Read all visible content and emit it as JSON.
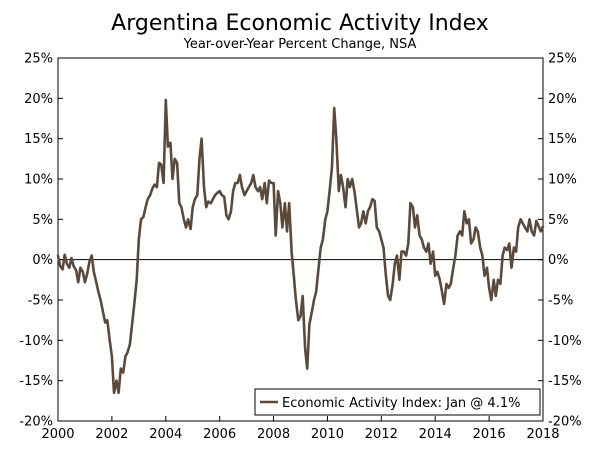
{
  "chart_data": {
    "type": "line",
    "title": "Argentina Economic Activity Index",
    "subtitle": "Year-over-Year Percent Change, NSA",
    "xlabel": "",
    "ylabel": "",
    "xlim": [
      2000,
      2018
    ],
    "ylim": [
      -20,
      25
    ],
    "x_ticks": [
      2000,
      2002,
      2004,
      2006,
      2008,
      2010,
      2012,
      2014,
      2016,
      2018
    ],
    "x_tick_labels": [
      "2000",
      "2002",
      "2004",
      "2006",
      "2008",
      "2010",
      "2012",
      "2014",
      "2016",
      "2018"
    ],
    "y_ticks": [
      25,
      20,
      15,
      10,
      5,
      0,
      -5,
      -10,
      -15,
      -20
    ],
    "y_tick_labels": [
      "25%",
      "20%",
      "15%",
      "10%",
      "5%",
      "0%",
      "-5%",
      "-10%",
      "-15%",
      "-20%"
    ],
    "zero_line": true,
    "legend": {
      "label": "Economic Activity Index: Jan @ 4.1%",
      "position": "bottom-right"
    },
    "series": [
      {
        "name": "Economic Activity Index",
        "color": "#5b4a3c",
        "points": [
          [
            2000.0,
            0.5
          ],
          [
            2000.08,
            -0.8
          ],
          [
            2000.17,
            -1.2
          ],
          [
            2000.25,
            0.6
          ],
          [
            2000.33,
            -0.5
          ],
          [
            2000.42,
            -1.0
          ],
          [
            2000.5,
            0.2
          ],
          [
            2000.58,
            -0.8
          ],
          [
            2000.67,
            -1.3
          ],
          [
            2000.75,
            -2.8
          ],
          [
            2000.83,
            -1.0
          ],
          [
            2000.92,
            -1.5
          ],
          [
            2001.0,
            -2.8
          ],
          [
            2001.08,
            -1.8
          ],
          [
            2001.17,
            -0.2
          ],
          [
            2001.25,
            0.5
          ],
          [
            2001.33,
            -1.5
          ],
          [
            2001.42,
            -2.8
          ],
          [
            2001.5,
            -4.0
          ],
          [
            2001.58,
            -5.0
          ],
          [
            2001.67,
            -6.5
          ],
          [
            2001.75,
            -7.8
          ],
          [
            2001.83,
            -7.5
          ],
          [
            2001.92,
            -10.0
          ],
          [
            2002.0,
            -12.0
          ],
          [
            2002.08,
            -16.5
          ],
          [
            2002.17,
            -15.0
          ],
          [
            2002.25,
            -16.5
          ],
          [
            2002.33,
            -13.5
          ],
          [
            2002.42,
            -14.0
          ],
          [
            2002.5,
            -12.0
          ],
          [
            2002.58,
            -11.5
          ],
          [
            2002.67,
            -10.5
          ],
          [
            2002.75,
            -8.0
          ],
          [
            2002.83,
            -5.5
          ],
          [
            2002.92,
            -2.5
          ],
          [
            2003.0,
            2.5
          ],
          [
            2003.08,
            5.0
          ],
          [
            2003.17,
            5.3
          ],
          [
            2003.25,
            6.5
          ],
          [
            2003.33,
            7.5
          ],
          [
            2003.42,
            8.0
          ],
          [
            2003.5,
            8.8
          ],
          [
            2003.58,
            9.3
          ],
          [
            2003.67,
            9.0
          ],
          [
            2003.75,
            12.0
          ],
          [
            2003.83,
            11.8
          ],
          [
            2003.92,
            9.5
          ],
          [
            2004.0,
            19.8
          ],
          [
            2004.08,
            14.0
          ],
          [
            2004.17,
            14.5
          ],
          [
            2004.25,
            10.0
          ],
          [
            2004.33,
            12.5
          ],
          [
            2004.42,
            12.0
          ],
          [
            2004.5,
            7.0
          ],
          [
            2004.58,
            6.5
          ],
          [
            2004.67,
            5.0
          ],
          [
            2004.75,
            4.0
          ],
          [
            2004.83,
            5.0
          ],
          [
            2004.92,
            3.8
          ],
          [
            2005.0,
            6.5
          ],
          [
            2005.08,
            7.5
          ],
          [
            2005.17,
            8.0
          ],
          [
            2005.25,
            12.5
          ],
          [
            2005.33,
            15.0
          ],
          [
            2005.42,
            9.0
          ],
          [
            2005.5,
            6.5
          ],
          [
            2005.58,
            7.2
          ],
          [
            2005.67,
            7.0
          ],
          [
            2005.75,
            7.5
          ],
          [
            2005.83,
            8.0
          ],
          [
            2005.92,
            8.3
          ],
          [
            2006.0,
            8.5
          ],
          [
            2006.08,
            8.0
          ],
          [
            2006.17,
            7.8
          ],
          [
            2006.25,
            5.5
          ],
          [
            2006.33,
            5.0
          ],
          [
            2006.42,
            6.0
          ],
          [
            2006.5,
            8.5
          ],
          [
            2006.58,
            9.5
          ],
          [
            2006.67,
            9.5
          ],
          [
            2006.75,
            10.5
          ],
          [
            2006.83,
            9.0
          ],
          [
            2006.92,
            8.0
          ],
          [
            2007.0,
            8.5
          ],
          [
            2007.08,
            9.0
          ],
          [
            2007.17,
            9.5
          ],
          [
            2007.25,
            10.5
          ],
          [
            2007.33,
            9.0
          ],
          [
            2007.42,
            8.5
          ],
          [
            2007.5,
            9.0
          ],
          [
            2007.58,
            7.5
          ],
          [
            2007.67,
            9.5
          ],
          [
            2007.75,
            7.0
          ],
          [
            2007.83,
            9.8
          ],
          [
            2007.92,
            9.5
          ],
          [
            2008.0,
            9.5
          ],
          [
            2008.08,
            3.0
          ],
          [
            2008.17,
            8.5
          ],
          [
            2008.25,
            7.0
          ],
          [
            2008.33,
            4.0
          ],
          [
            2008.42,
            7.0
          ],
          [
            2008.5,
            3.5
          ],
          [
            2008.58,
            7.0
          ],
          [
            2008.67,
            1.0
          ],
          [
            2008.75,
            -2.0
          ],
          [
            2008.83,
            -5.0
          ],
          [
            2008.92,
            -7.5
          ],
          [
            2009.0,
            -7.0
          ],
          [
            2009.08,
            -4.5
          ],
          [
            2009.17,
            -11.0
          ],
          [
            2009.25,
            -13.5
          ],
          [
            2009.33,
            -8.0
          ],
          [
            2009.42,
            -6.5
          ],
          [
            2009.5,
            -5.0
          ],
          [
            2009.58,
            -4.0
          ],
          [
            2009.67,
            -1.0
          ],
          [
            2009.75,
            1.5
          ],
          [
            2009.83,
            2.5
          ],
          [
            2009.92,
            5.0
          ],
          [
            2010.0,
            6.0
          ],
          [
            2010.08,
            8.5
          ],
          [
            2010.17,
            11.5
          ],
          [
            2010.25,
            18.8
          ],
          [
            2010.33,
            15.0
          ],
          [
            2010.42,
            8.5
          ],
          [
            2010.5,
            10.5
          ],
          [
            2010.58,
            9.0
          ],
          [
            2010.67,
            6.5
          ],
          [
            2010.75,
            10.0
          ],
          [
            2010.83,
            9.0
          ],
          [
            2010.92,
            10.0
          ],
          [
            2011.0,
            8.5
          ],
          [
            2011.08,
            6.5
          ],
          [
            2011.17,
            4.0
          ],
          [
            2011.25,
            4.5
          ],
          [
            2011.33,
            6.0
          ],
          [
            2011.42,
            4.5
          ],
          [
            2011.5,
            6.0
          ],
          [
            2011.58,
            6.5
          ],
          [
            2011.67,
            7.5
          ],
          [
            2011.75,
            7.3
          ],
          [
            2011.83,
            4.0
          ],
          [
            2011.92,
            3.5
          ],
          [
            2012.0,
            2.5
          ],
          [
            2012.08,
            1.5
          ],
          [
            2012.17,
            -2.0
          ],
          [
            2012.25,
            -4.5
          ],
          [
            2012.33,
            -5.0
          ],
          [
            2012.42,
            -3.0
          ],
          [
            2012.5,
            -0.5
          ],
          [
            2012.58,
            0.5
          ],
          [
            2012.67,
            -2.5
          ],
          [
            2012.75,
            1.0
          ],
          [
            2012.83,
            1.0
          ],
          [
            2012.92,
            0.5
          ],
          [
            2013.0,
            2.0
          ],
          [
            2013.08,
            7.0
          ],
          [
            2013.17,
            6.5
          ],
          [
            2013.25,
            4.0
          ],
          [
            2013.33,
            5.5
          ],
          [
            2013.42,
            3.0
          ],
          [
            2013.5,
            2.5
          ],
          [
            2013.58,
            1.5
          ],
          [
            2013.67,
            1.0
          ],
          [
            2013.75,
            2.0
          ],
          [
            2013.83,
            -0.5
          ],
          [
            2013.92,
            1.0
          ],
          [
            2014.0,
            -2.0
          ],
          [
            2014.08,
            -1.5
          ],
          [
            2014.17,
            -2.5
          ],
          [
            2014.25,
            -4.0
          ],
          [
            2014.33,
            -5.5
          ],
          [
            2014.42,
            -3.0
          ],
          [
            2014.5,
            -3.5
          ],
          [
            2014.58,
            -3.0
          ],
          [
            2014.67,
            -1.0
          ],
          [
            2014.75,
            0.5
          ],
          [
            2014.83,
            3.0
          ],
          [
            2014.92,
            3.5
          ],
          [
            2015.0,
            3.0
          ],
          [
            2015.08,
            6.0
          ],
          [
            2015.17,
            4.5
          ],
          [
            2015.25,
            5.0
          ],
          [
            2015.33,
            2.0
          ],
          [
            2015.42,
            2.5
          ],
          [
            2015.5,
            4.0
          ],
          [
            2015.58,
            3.5
          ],
          [
            2015.67,
            1.5
          ],
          [
            2015.75,
            0.5
          ],
          [
            2015.83,
            -2.0
          ],
          [
            2015.92,
            -1.0
          ],
          [
            2016.0,
            -3.5
          ],
          [
            2016.08,
            -5.0
          ],
          [
            2016.17,
            -2.5
          ],
          [
            2016.25,
            -4.5
          ],
          [
            2016.33,
            -2.5
          ],
          [
            2016.42,
            -3.0
          ],
          [
            2016.5,
            0.5
          ],
          [
            2016.58,
            1.5
          ],
          [
            2016.67,
            1.2
          ],
          [
            2016.75,
            2.0
          ],
          [
            2016.83,
            -1.0
          ],
          [
            2016.92,
            1.5
          ],
          [
            2017.0,
            1.0
          ],
          [
            2017.08,
            4.0
          ],
          [
            2017.17,
            5.0
          ],
          [
            2017.25,
            4.5
          ],
          [
            2017.33,
            4.0
          ],
          [
            2017.42,
            3.5
          ],
          [
            2017.5,
            5.0
          ],
          [
            2017.58,
            3.5
          ],
          [
            2017.67,
            3.0
          ],
          [
            2017.75,
            4.8
          ],
          [
            2017.83,
            4.2
          ],
          [
            2017.92,
            3.5
          ],
          [
            2018.0,
            4.1
          ]
        ]
      }
    ]
  }
}
